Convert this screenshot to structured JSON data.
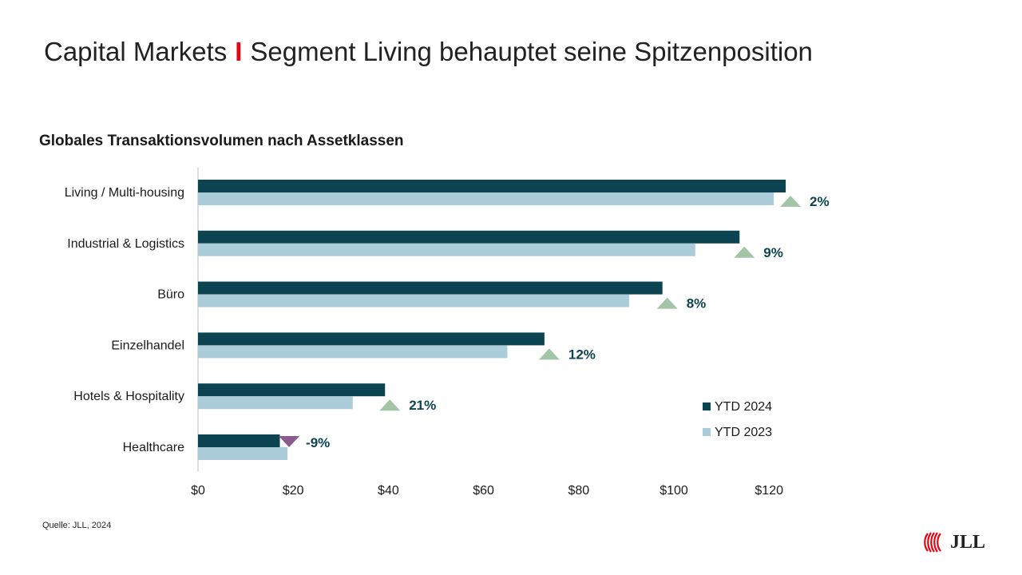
{
  "slide": {
    "title_part1": "Capital Markets",
    "title_separator": "I",
    "title_part2": "Segment Living behauptet seine Spitzenposition",
    "source": "Quelle: JLL, 2024",
    "logo_text": "JLL"
  },
  "colors": {
    "series_2024": "#0d4451",
    "series_2023": "#abcdd9",
    "up_marker": "#a3c4a6",
    "down_marker": "#8c5a8e",
    "change_label": "#0d4451",
    "axis": "#bfbfbf",
    "logo_red": "#e30613"
  },
  "chart_data": {
    "type": "bar",
    "orientation": "horizontal",
    "title": "Globales Transaktionsvolumen nach Assetklassen",
    "categories": [
      "Living / Multi-housing",
      "Industrial & Logistics",
      "Büro",
      "Einzelhandel",
      "Hotels & Hospitality",
      "Healthcare"
    ],
    "series": [
      {
        "name": "YTD 2024",
        "values": [
          123.5,
          113.8,
          97.6,
          72.8,
          39.3,
          17.2
        ]
      },
      {
        "name": "YTD 2023",
        "values": [
          121.0,
          104.5,
          90.6,
          65.0,
          32.5,
          18.8
        ]
      }
    ],
    "changes": [
      {
        "label": "2%",
        "direction": "up"
      },
      {
        "label": "9%",
        "direction": "up"
      },
      {
        "label": "8%",
        "direction": "up"
      },
      {
        "label": "12%",
        "direction": "up"
      },
      {
        "label": "21%",
        "direction": "up"
      },
      {
        "label": "-9%",
        "direction": "down"
      }
    ],
    "xlim": [
      0,
      130
    ],
    "xticks": [
      0,
      20,
      40,
      60,
      80,
      100,
      120
    ],
    "xtick_labels": [
      "$0",
      "$20",
      "$40",
      "$60",
      "$80",
      "$100",
      "$120"
    ],
    "legend": [
      "YTD 2024",
      "YTD 2023"
    ],
    "legend_position": "bottom-right",
    "grid": false
  }
}
